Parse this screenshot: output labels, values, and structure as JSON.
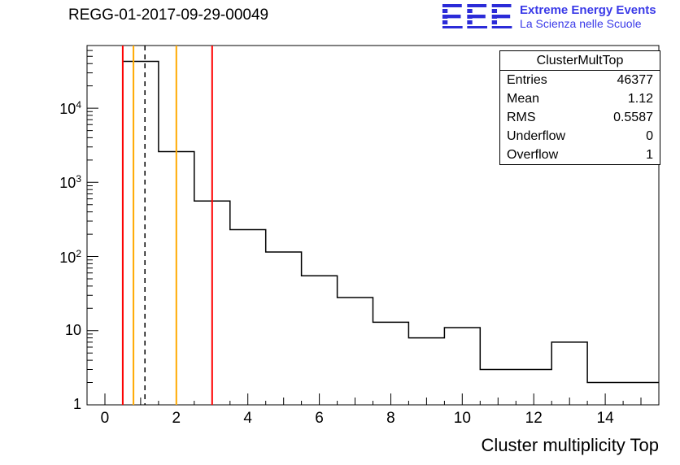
{
  "title": "REGG-01-2017-09-29-00049",
  "logo": {
    "text": "EEE",
    "color": "#2b2bd8",
    "tagline_color": "#3a3ae8",
    "line1": "Extreme Energy Events",
    "line2": "La Scienza nelle Scuole"
  },
  "stats": {
    "title": "ClusterMultTop",
    "rows": [
      {
        "label": "Entries",
        "value": "46377"
      },
      {
        "label": "Mean",
        "value": "1.12"
      },
      {
        "label": "RMS",
        "value": "0.5587"
      },
      {
        "label": "Underflow",
        "value": "0"
      },
      {
        "label": "Overflow",
        "value": "1"
      }
    ]
  },
  "chart_data": {
    "type": "bar",
    "subtype": "step-histogram",
    "title": "REGG-01-2017-09-29-00049",
    "xlabel": "Cluster multiplicity Top",
    "ylabel": "",
    "y_scale": "log",
    "x_range": [
      -0.5,
      15.5
    ],
    "y_range": [
      1,
      70000
    ],
    "grid": false,
    "legend": false,
    "line_color": "#000000",
    "bin_edges": [
      0.5,
      1.5,
      2.5,
      3.5,
      4.5,
      5.5,
      6.5,
      7.5,
      8.5,
      9.5,
      10.5,
      11.5,
      12.5,
      13.5,
      14.5,
      15.5
    ],
    "bin_centers": [
      1,
      2,
      3,
      4,
      5,
      6,
      7,
      8,
      9,
      10,
      11,
      12,
      13,
      14,
      15
    ],
    "counts": [
      42800,
      2600,
      560,
      230,
      115,
      55,
      28,
      13,
      8,
      11,
      3,
      3,
      7,
      2,
      2
    ],
    "x_ticks": [
      0,
      2,
      4,
      6,
      8,
      10,
      12,
      14
    ],
    "y_ticks": [
      {
        "value": 1,
        "base": "1",
        "exp": ""
      },
      {
        "value": 10,
        "base": "10",
        "exp": ""
      },
      {
        "value": 100,
        "base": "10",
        "exp": "2"
      },
      {
        "value": 1000,
        "base": "10",
        "exp": "3"
      },
      {
        "value": 10000,
        "base": "10",
        "exp": "4"
      }
    ],
    "vlines": [
      {
        "x": 0.5,
        "color": "#ff0000",
        "style": "solid"
      },
      {
        "x": 0.8,
        "color": "#ffaa00",
        "style": "solid"
      },
      {
        "x": 1.12,
        "color": "#000000",
        "style": "dashed"
      },
      {
        "x": 2.0,
        "color": "#ffaa00",
        "style": "solid"
      },
      {
        "x": 3.0,
        "color": "#ff0000",
        "style": "solid"
      }
    ]
  }
}
